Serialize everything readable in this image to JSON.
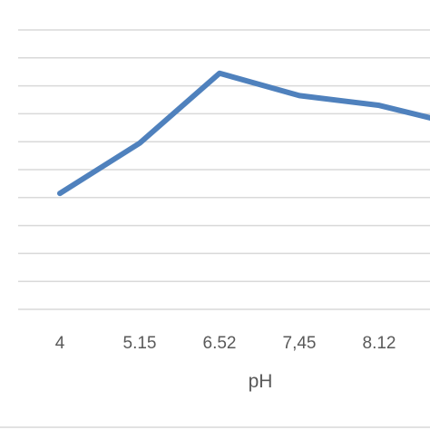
{
  "chart_data": {
    "type": "line",
    "categories": [
      "4",
      "5.15",
      "6.52",
      "7,45",
      "8.12",
      ""
    ],
    "series": [
      {
        "values": [
          4.15,
          5.95,
          8.45,
          7.65,
          7.3,
          6.6
        ]
      }
    ],
    "xlabel": "pH",
    "ylabel": "",
    "ylim": [
      0,
      10
    ],
    "grid": true,
    "colors": {
      "line": "#4f81bd",
      "grid": "#d9d9d9",
      "text": "#595959",
      "border": "#d9d9d9"
    }
  }
}
